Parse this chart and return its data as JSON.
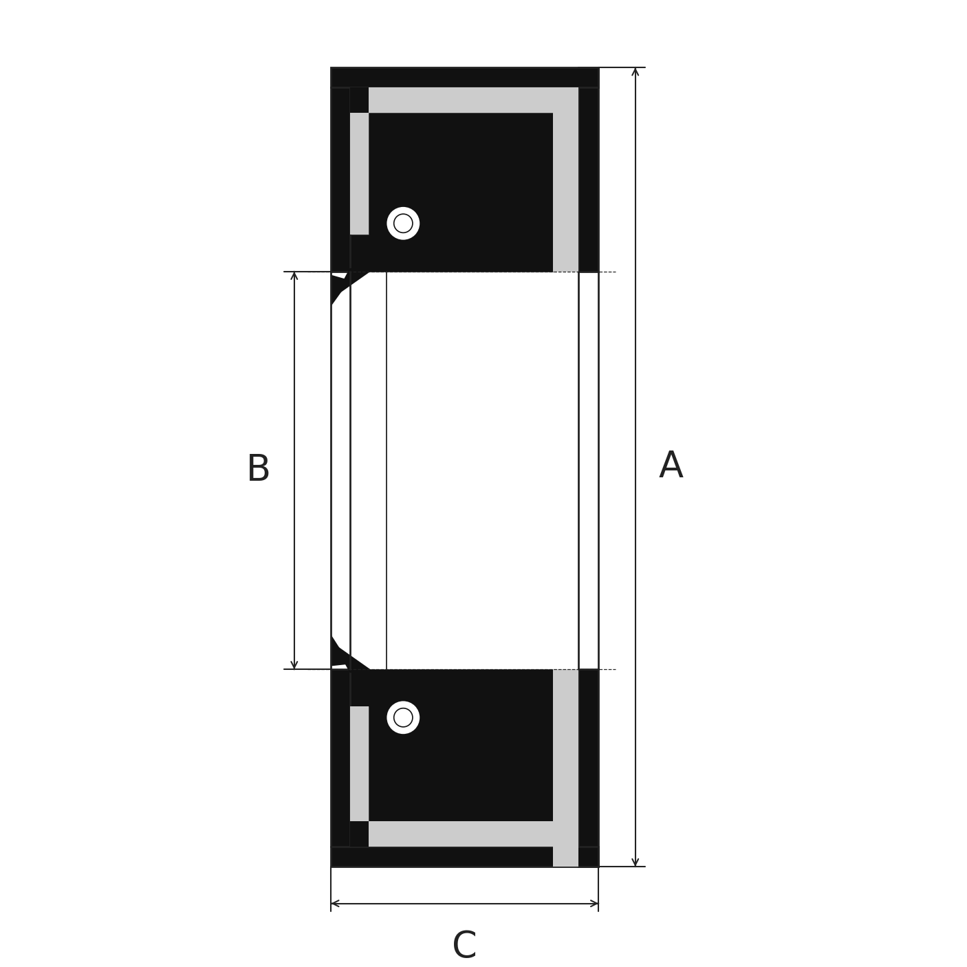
{
  "background_color": "#ffffff",
  "black": "#111111",
  "gray": "#cccccc",
  "white": "#ffffff",
  "line_color": "#222222",
  "dim_color": "#222222",
  "label_A": "A",
  "label_B": "B",
  "label_C": "C",
  "fig_w": 14.06,
  "fig_h": 14.06,
  "dpi": 100,
  "xlim": [
    0,
    14.06
  ],
  "ylim": [
    0,
    14.06
  ],
  "label_fontsize": 38
}
